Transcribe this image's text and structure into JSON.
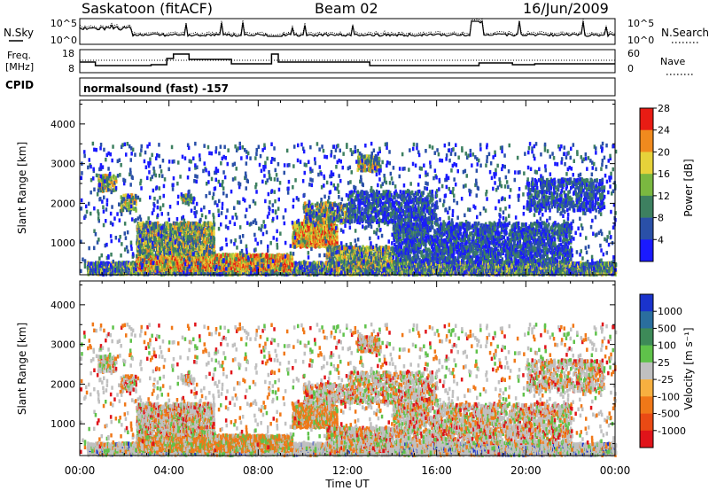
{
  "header": {
    "station": "Saskatoon (fitACF)",
    "beam": "Beam 02",
    "date": "16/Jun/2009"
  },
  "noise_panel": {
    "left_label": "N.Sky",
    "left_ticks": [
      "10^5",
      "10^0"
    ],
    "right_ticks": [
      "10^5",
      "10^0"
    ],
    "right_label": "N.Search"
  },
  "freq_panel": {
    "left_label_1": "Freq.",
    "left_label_2": "[MHz]",
    "left_ticks": [
      "18",
      "8"
    ],
    "right_ticks": [
      "60",
      "0"
    ],
    "right_label": "Nave"
  },
  "cpid": {
    "label": "CPID",
    "value": "normalsound (fast) -157"
  },
  "chart_data": [
    {
      "type": "heatmap",
      "name": "power",
      "ylabel": "Slant Range [km]",
      "yticks": [
        "1000",
        "2000",
        "3000",
        "4000"
      ],
      "ylim": [
        200,
        4600
      ],
      "colorbar": {
        "label": "Power [dB]",
        "ticks": [
          "4",
          "8",
          "12",
          "16",
          "20",
          "24",
          "28"
        ],
        "colors": [
          "#1a1aff",
          "#2a50a8",
          "#3d8060",
          "#7ab840",
          "#e6d23a",
          "#f08a1e",
          "#e81c14"
        ]
      }
    },
    {
      "type": "heatmap",
      "name": "velocity",
      "ylabel": "Slant Range [km]",
      "yticks": [
        "1000",
        "2000",
        "3000",
        "4000"
      ],
      "ylim": [
        200,
        4600
      ],
      "colorbar": {
        "label": "Velocity [m s⁻¹]",
        "ticks": [
          "1000",
          "500",
          "100",
          "25",
          "-25",
          "-100",
          "-500",
          "-1000"
        ],
        "colors": [
          "#1a33cc",
          "#2a6e9e",
          "#3d8a58",
          "#5fc24a",
          "#c0c0c0",
          "#f7b040",
          "#f07818",
          "#ea4a14",
          "#e0141a"
        ]
      }
    }
  ],
  "xaxis": {
    "ticks": [
      "00:00",
      "04:00",
      "08:00",
      "12:00",
      "16:00",
      "20:00",
      "00:00"
    ],
    "label": "Time UT"
  }
}
